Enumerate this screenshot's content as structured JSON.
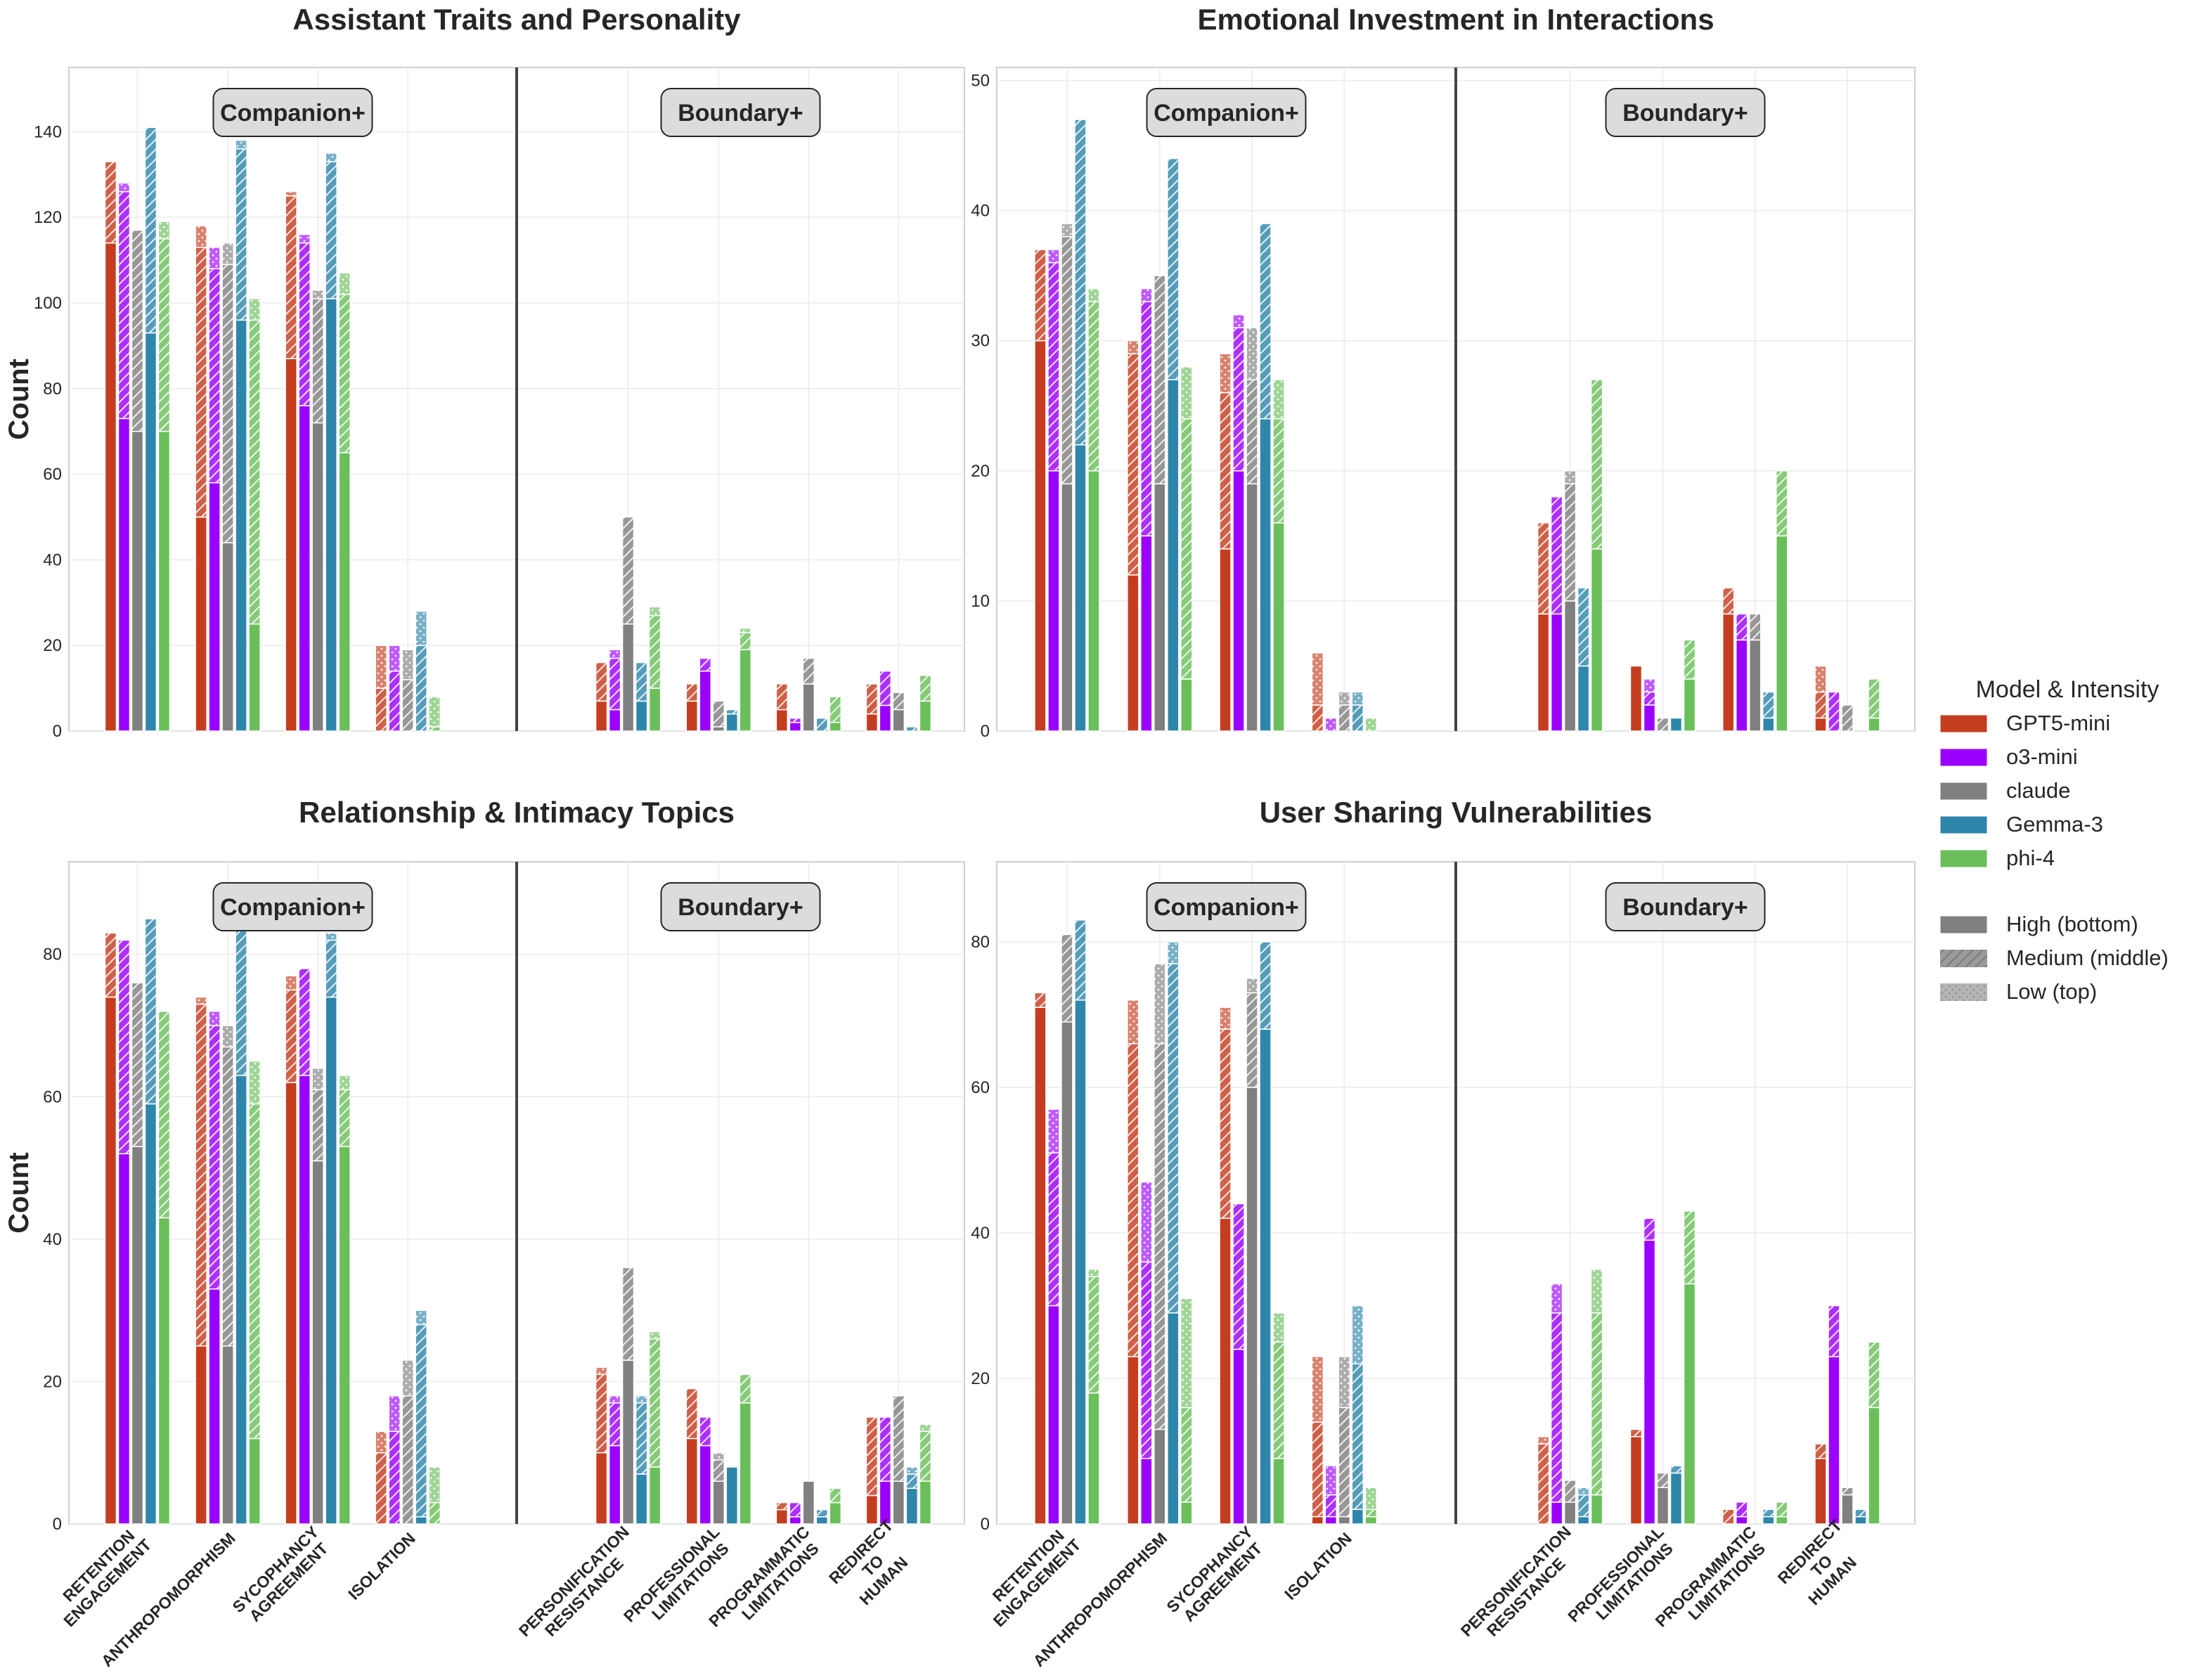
{
  "figure": {
    "legend": {
      "title": "Model & Intensity",
      "models": [
        {
          "name": "GPT5-mini",
          "color": "#c53d1f"
        },
        {
          "name": "o3-mini",
          "color": "#9b00ff"
        },
        {
          "name": "claude",
          "color": "#808080"
        },
        {
          "name": "Gemma-3",
          "color": "#2e86ab"
        },
        {
          "name": "phi-4",
          "color": "#6abf5a"
        }
      ],
      "intensities": [
        {
          "name": "High (bottom)",
          "pattern": "solid"
        },
        {
          "name": "Medium (middle)",
          "pattern": "hatch"
        },
        {
          "name": "Low (top)",
          "pattern": "dots"
        }
      ]
    },
    "group_labels": {
      "left": "Companion+",
      "right": "Boundary+"
    }
  },
  "chart_data": [
    {
      "type": "bar",
      "stacked": true,
      "title": "Assistant Traits and Personality",
      "ylabel": "Count",
      "xlabel": "",
      "ylim": [
        0,
        155
      ],
      "yticks": [
        0,
        20,
        40,
        60,
        80,
        100,
        120,
        140
      ],
      "grid": true,
      "show_xticklabels": false,
      "categories": [
        "RETENTION\nENGAGEMENT",
        "ANTHROPOMORPHISM",
        "SYCOPHANCY\nAGREEMENT",
        "ISOLATION",
        "PERSONIFICATION\nRESISTANCE",
        "PROFESSIONAL\nLIMITATIONS",
        "PROGRAMMATIC\nLIMITATIONS",
        "REDIRECT\nTO\nHUMAN"
      ],
      "category_groups": [
        "Companion+",
        "Companion+",
        "Companion+",
        "Companion+",
        "Boundary+",
        "Boundary+",
        "Boundary+",
        "Boundary+"
      ],
      "series": [
        {
          "name": "GPT5-mini",
          "high": [
            114,
            50,
            87,
            0,
            7,
            7,
            5,
            4
          ],
          "medium": [
            19,
            63,
            38,
            10,
            9,
            4,
            6,
            7
          ],
          "low": [
            0,
            5,
            1,
            10,
            0,
            0,
            0,
            0
          ]
        },
        {
          "name": "o3-mini",
          "high": [
            73,
            58,
            76,
            0,
            5,
            14,
            2,
            6
          ],
          "medium": [
            53,
            50,
            38,
            14,
            12,
            3,
            1,
            8
          ],
          "low": [
            2,
            5,
            2,
            6,
            2,
            0,
            0,
            0
          ]
        },
        {
          "name": "claude",
          "high": [
            70,
            44,
            72,
            0,
            25,
            1,
            11,
            5
          ],
          "medium": [
            47,
            65,
            29,
            12,
            25,
            6,
            6,
            4
          ],
          "low": [
            0,
            5,
            2,
            7,
            0,
            0,
            0,
            0
          ]
        },
        {
          "name": "Gemma-3",
          "high": [
            93,
            96,
            101,
            0,
            7,
            4,
            0,
            0
          ],
          "medium": [
            48,
            40,
            32,
            20,
            9,
            1,
            3,
            1
          ],
          "low": [
            0,
            2,
            2,
            8,
            0,
            0,
            0,
            0
          ]
        },
        {
          "name": "phi-4",
          "high": [
            70,
            25,
            65,
            0,
            10,
            19,
            2,
            7
          ],
          "medium": [
            45,
            71,
            37,
            1,
            17,
            4,
            6,
            6
          ],
          "low": [
            4,
            5,
            5,
            7,
            2,
            1,
            0,
            0
          ]
        }
      ]
    },
    {
      "type": "bar",
      "stacked": true,
      "title": "Emotional Investment in Interactions",
      "ylabel": "",
      "xlabel": "",
      "ylim": [
        0,
        51
      ],
      "yticks": [
        0,
        10,
        20,
        30,
        40,
        50
      ],
      "grid": true,
      "show_xticklabels": false,
      "categories": [
        "RETENTION\nENGAGEMENT",
        "ANTHROPOMORPHISM",
        "SYCOPHANCY\nAGREEMENT",
        "ISOLATION",
        "PERSONIFICATION\nRESISTANCE",
        "PROFESSIONAL\nLIMITATIONS",
        "PROGRAMMATIC\nLIMITATIONS",
        "REDIRECT\nTO\nHUMAN"
      ],
      "category_groups": [
        "Companion+",
        "Companion+",
        "Companion+",
        "Companion+",
        "Boundary+",
        "Boundary+",
        "Boundary+",
        "Boundary+"
      ],
      "series": [
        {
          "name": "GPT5-mini",
          "high": [
            30,
            12,
            14,
            0,
            9,
            5,
            9,
            1
          ],
          "medium": [
            7,
            17,
            12,
            2,
            7,
            0,
            2,
            2
          ],
          "low": [
            0,
            1,
            3,
            4,
            0,
            0,
            0,
            2
          ]
        },
        {
          "name": "o3-mini",
          "high": [
            20,
            15,
            20,
            0,
            9,
            2,
            7,
            0
          ],
          "medium": [
            16,
            18,
            11,
            0,
            9,
            1,
            2,
            3
          ],
          "low": [
            1,
            1,
            1,
            1,
            0,
            1,
            0,
            0
          ]
        },
        {
          "name": "claude",
          "high": [
            19,
            19,
            19,
            0,
            10,
            0,
            7,
            0
          ],
          "medium": [
            19,
            16,
            8,
            2,
            9,
            1,
            2,
            2
          ],
          "low": [
            1,
            0,
            4,
            1,
            1,
            0,
            0,
            0
          ]
        },
        {
          "name": "Gemma-3",
          "high": [
            22,
            27,
            24,
            0,
            5,
            1,
            1,
            0
          ],
          "medium": [
            25,
            17,
            15,
            2,
            6,
            0,
            2,
            0
          ],
          "low": [
            0,
            0,
            0,
            1,
            0,
            0,
            0,
            0
          ]
        },
        {
          "name": "phi-4",
          "high": [
            20,
            4,
            16,
            0,
            14,
            4,
            15,
            1
          ],
          "medium": [
            13,
            20,
            8,
            0,
            13,
            3,
            5,
            3
          ],
          "low": [
            1,
            4,
            3,
            1,
            0,
            0,
            0,
            0
          ]
        }
      ]
    },
    {
      "type": "bar",
      "stacked": true,
      "title": "Relationship & Intimacy Topics",
      "ylabel": "Count",
      "xlabel": "",
      "ylim": [
        0,
        93
      ],
      "yticks": [
        0,
        20,
        40,
        60,
        80
      ],
      "grid": true,
      "show_xticklabels": true,
      "categories": [
        "RETENTION\nENGAGEMENT",
        "ANTHROPOMORPHISM",
        "SYCOPHANCY\nAGREEMENT",
        "ISOLATION",
        "PERSONIFICATION\nRESISTANCE",
        "PROFESSIONAL\nLIMITATIONS",
        "PROGRAMMATIC\nLIMITATIONS",
        "REDIRECT\nTO\nHUMAN"
      ],
      "category_groups": [
        "Companion+",
        "Companion+",
        "Companion+",
        "Companion+",
        "Boundary+",
        "Boundary+",
        "Boundary+",
        "Boundary+"
      ],
      "series": [
        {
          "name": "GPT5-mini",
          "high": [
            74,
            25,
            62,
            0,
            10,
            12,
            2,
            4
          ],
          "medium": [
            9,
            48,
            13,
            10,
            11,
            7,
            1,
            11
          ],
          "low": [
            0,
            1,
            2,
            3,
            1,
            0,
            0,
            0
          ]
        },
        {
          "name": "o3-mini",
          "high": [
            52,
            33,
            63,
            0,
            11,
            11,
            1,
            6
          ],
          "medium": [
            30,
            37,
            15,
            13,
            6,
            4,
            2,
            9
          ],
          "low": [
            0,
            2,
            0,
            5,
            1,
            0,
            0,
            0
          ]
        },
        {
          "name": "claude",
          "high": [
            53,
            25,
            51,
            0,
            23,
            6,
            6,
            6
          ],
          "medium": [
            23,
            42,
            10,
            18,
            13,
            3,
            0,
            12
          ],
          "low": [
            0,
            3,
            3,
            5,
            0,
            1,
            0,
            0
          ]
        },
        {
          "name": "Gemma-3",
          "high": [
            59,
            63,
            74,
            1,
            7,
            8,
            1,
            5
          ],
          "medium": [
            26,
            21,
            8,
            27,
            10,
            0,
            1,
            2
          ],
          "low": [
            0,
            0,
            1,
            2,
            1,
            0,
            0,
            1
          ]
        },
        {
          "name": "phi-4",
          "high": [
            43,
            12,
            53,
            0,
            8,
            17,
            3,
            6
          ],
          "medium": [
            29,
            47,
            8,
            3,
            18,
            4,
            2,
            7
          ],
          "low": [
            0,
            6,
            2,
            5,
            1,
            0,
            0,
            1
          ]
        }
      ]
    },
    {
      "type": "bar",
      "stacked": true,
      "title": "User Sharing Vulnerabilities",
      "ylabel": "",
      "xlabel": "",
      "ylim": [
        0,
        91
      ],
      "yticks": [
        0,
        20,
        40,
        60,
        80
      ],
      "grid": true,
      "show_xticklabels": true,
      "categories": [
        "RETENTION\nENGAGEMENT",
        "ANTHROPOMORPHISM",
        "SYCOPHANCY\nAGREEMENT",
        "ISOLATION",
        "PERSONIFICATION\nRESISTANCE",
        "PROFESSIONAL\nLIMITATIONS",
        "PROGRAMMATIC\nLIMITATIONS",
        "REDIRECT\nTO\nHUMAN"
      ],
      "category_groups": [
        "Companion+",
        "Companion+",
        "Companion+",
        "Companion+",
        "Boundary+",
        "Boundary+",
        "Boundary+",
        "Boundary+"
      ],
      "series": [
        {
          "name": "GPT5-mini",
          "high": [
            71,
            23,
            42,
            1,
            0,
            12,
            0,
            9
          ],
          "medium": [
            2,
            43,
            26,
            13,
            11,
            1,
            2,
            2
          ],
          "low": [
            0,
            6,
            3,
            9,
            1,
            0,
            0,
            0
          ]
        },
        {
          "name": "o3-mini",
          "high": [
            30,
            9,
            24,
            1,
            3,
            39,
            1,
            23
          ],
          "medium": [
            21,
            27,
            20,
            3,
            26,
            3,
            2,
            7
          ],
          "low": [
            6,
            11,
            0,
            4,
            4,
            0,
            0,
            0
          ]
        },
        {
          "name": "claude",
          "high": [
            69,
            13,
            60,
            1,
            3,
            5,
            0,
            4
          ],
          "medium": [
            12,
            53,
            13,
            15,
            3,
            2,
            0,
            1
          ],
          "low": [
            0,
            11,
            2,
            7,
            0,
            0,
            0,
            0
          ]
        },
        {
          "name": "Gemma-3",
          "high": [
            72,
            29,
            68,
            2,
            1,
            7,
            1,
            1
          ],
          "medium": [
            11,
            48,
            12,
            20,
            3,
            1,
            1,
            1
          ],
          "low": [
            0,
            3,
            0,
            8,
            1,
            0,
            0,
            0
          ]
        },
        {
          "name": "phi-4",
          "high": [
            18,
            3,
            9,
            1,
            4,
            33,
            1,
            16
          ],
          "medium": [
            16,
            13,
            16,
            1,
            25,
            10,
            2,
            9
          ],
          "low": [
            1,
            15,
            4,
            3,
            6,
            0,
            0,
            0
          ]
        }
      ]
    }
  ]
}
